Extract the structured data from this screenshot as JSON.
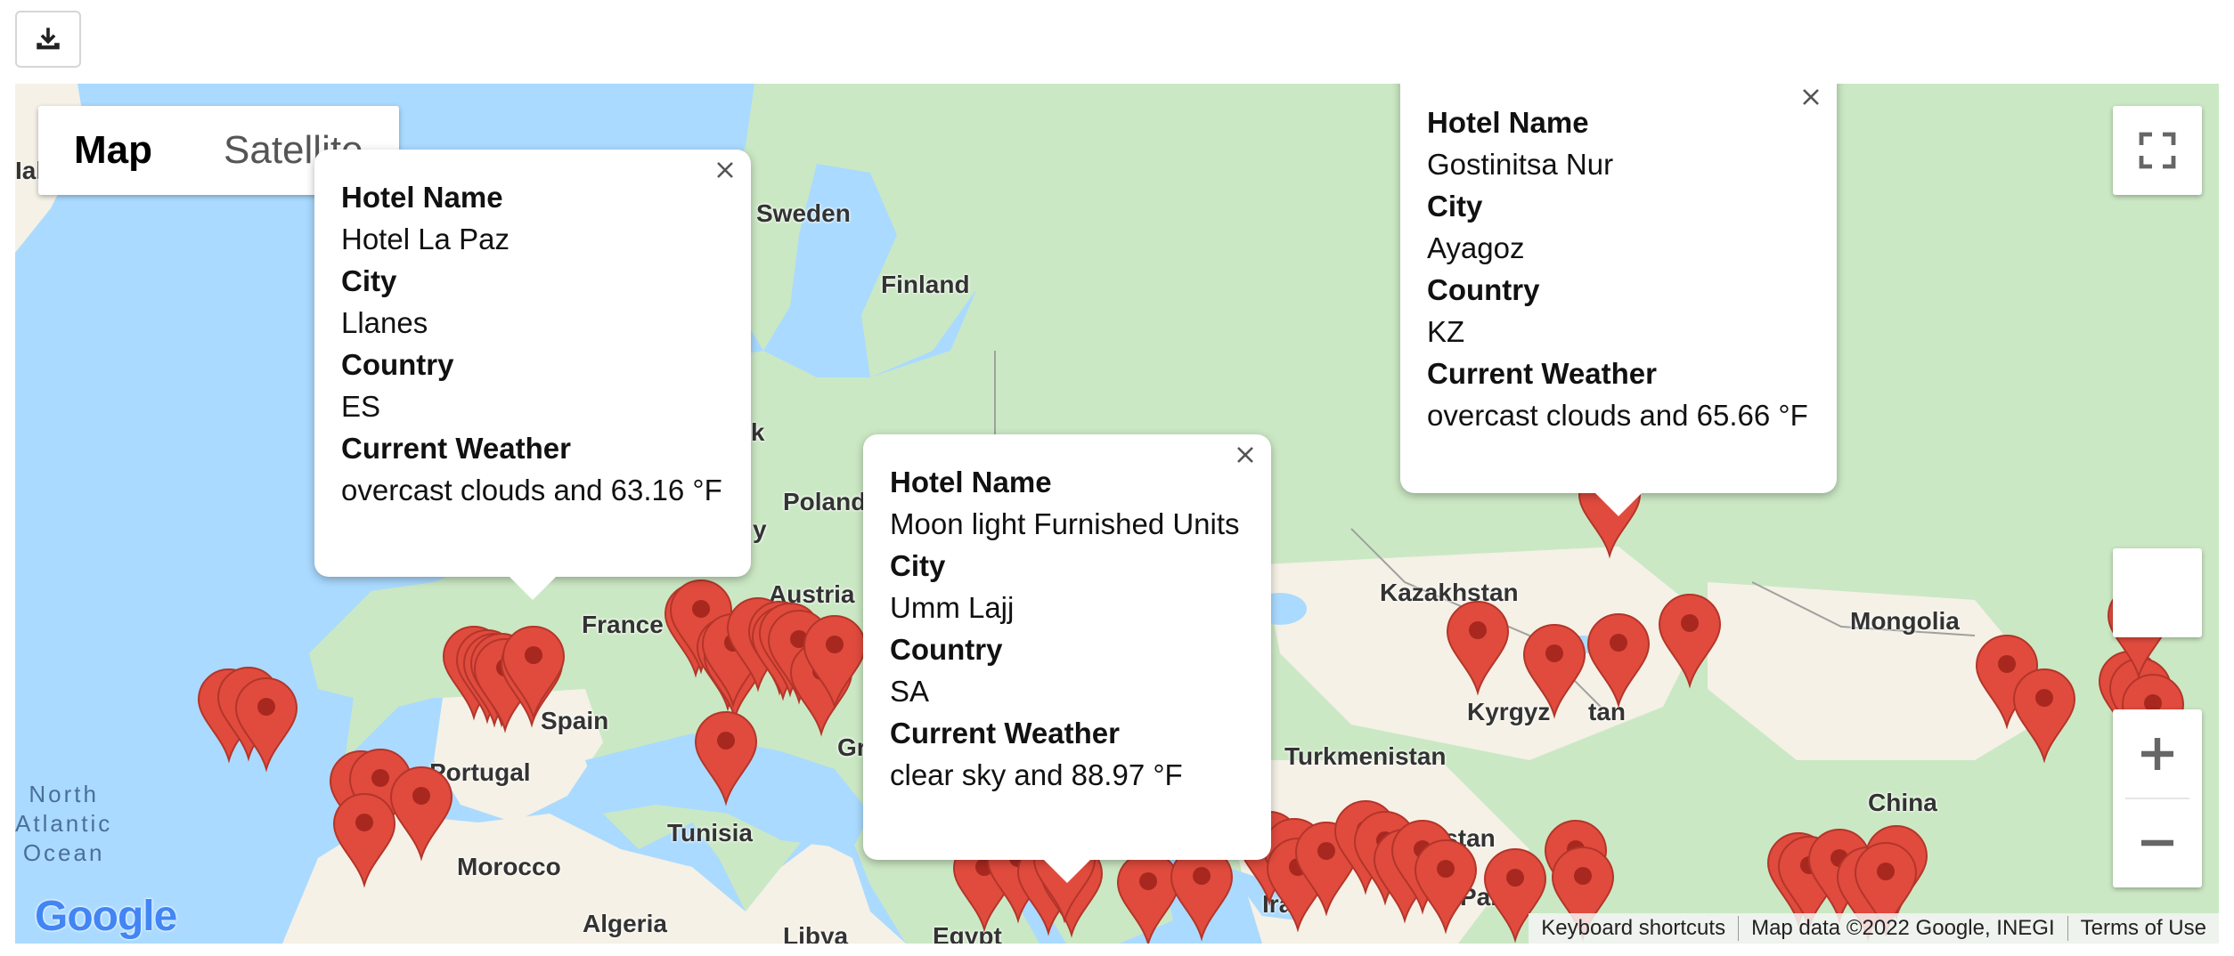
{
  "toolbar": {
    "download_icon": "download-icon"
  },
  "map": {
    "type_control": {
      "map_label": "Map",
      "satellite_label": "Satellite"
    },
    "fullscreen_icon": "fullscreen-icon",
    "zoom_in_icon": "plus-icon",
    "zoom_out_icon": "minus-icon",
    "labels": {
      "sweden": "Sweden",
      "finland": "Finland",
      "poland": "Poland",
      "austria": "Austria",
      "france": "France",
      "spain": "Spain",
      "portugal": "Portugal",
      "morocco": "Morocco",
      "algeria": "Algeria",
      "tunisia": "Tunisia",
      "libya": "Libya",
      "egypt": "Egypt",
      "kazakhstan": "Kazakhstan",
      "mongolia": "Mongolia",
      "china": "China",
      "afghanistan": "Afghanistan",
      "iran": "Iran",
      "pakistan": "Pakis",
      "kyrgyzstan_a": "Kyrgyz",
      "kyrgyzstan_b": "tan",
      "turkmenistan": "Turkmenistan",
      "denmark_frag": "rk",
      "greece_frag": "Gr",
      "hungary_frag": "y",
      "ireland_frag": "Ial",
      "ocean": "North\nAtlantic\nOcean"
    },
    "google_logo": "Google",
    "attribution": {
      "shortcuts": "Keyboard shortcuts",
      "map_data": "Map data ©2022 Google, INEGI",
      "terms": "Terms of Use"
    }
  },
  "info_windows": [
    {
      "hotel_label": "Hotel Name",
      "hotel": "Hotel La Paz",
      "city_label": "City",
      "city": "Llanes",
      "country_label": "Country",
      "country": "ES",
      "weather_label": "Current Weather",
      "weather": "overcast clouds and 63.16 °F"
    },
    {
      "hotel_label": "Hotel Name",
      "hotel": "Moon light Furnished Units",
      "city_label": "City",
      "city": "Umm Lajj",
      "country_label": "Country",
      "country": "SA",
      "weather_label": "Current Weather",
      "weather": "clear sky and 88.97 °F"
    },
    {
      "hotel_label": "Hotel Name",
      "hotel": "Gostinitsa Nur",
      "city_label": "City",
      "city": "Ayagoz",
      "country_label": "Country",
      "country": "KZ",
      "weather_label": "Current Weather",
      "weather": "overcast clouds and 65.66 °F"
    }
  ],
  "colors": {
    "water": "#aadaff",
    "land": "#f5f1e6",
    "forest": "#cbe8c4",
    "marker": "#e04b3d"
  }
}
